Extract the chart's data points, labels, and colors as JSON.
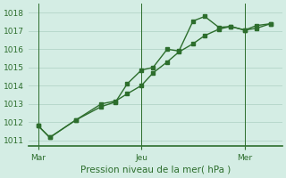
{
  "xlabel": "Pression niveau de la mer( hPa )",
  "background_color": "#d4ede4",
  "grid_color": "#b8d8cc",
  "line_color": "#2d6e2d",
  "spine_color": "#2d6e2d",
  "ylim": [
    1010.7,
    1018.5
  ],
  "yticks": [
    1011,
    1012,
    1013,
    1014,
    1015,
    1016,
    1017,
    1018
  ],
  "xtick_labels": [
    "Mar",
    "Jeu",
    "Mer"
  ],
  "xtick_positions": [
    0.0,
    0.44,
    0.88
  ],
  "vline_positions": [
    0.0,
    0.44,
    0.88
  ],
  "series1_x": [
    0.0,
    0.05,
    0.16,
    0.27,
    0.33,
    0.38,
    0.44,
    0.49,
    0.55,
    0.6,
    0.66,
    0.71,
    0.77,
    0.82,
    0.88,
    0.93,
    0.99
  ],
  "series1_y": [
    1011.8,
    1011.15,
    1012.1,
    1012.85,
    1013.1,
    1014.1,
    1014.85,
    1015.0,
    1016.0,
    1015.9,
    1017.55,
    1017.8,
    1017.2,
    1017.25,
    1017.05,
    1017.3,
    1017.4
  ],
  "series2_x": [
    0.0,
    0.05,
    0.16,
    0.27,
    0.33,
    0.38,
    0.44,
    0.49,
    0.55,
    0.6,
    0.66,
    0.71,
    0.77,
    0.82,
    0.88,
    0.93,
    0.99
  ],
  "series2_y": [
    1011.8,
    1011.15,
    1012.1,
    1013.0,
    1013.15,
    1013.55,
    1014.0,
    1014.7,
    1015.3,
    1015.85,
    1016.3,
    1016.75,
    1017.1,
    1017.25,
    1017.05,
    1017.15,
    1017.4
  ],
  "xlabel_fontsize": 7.5,
  "tick_fontsize": 6.5,
  "marker_size": 2.5,
  "linewidth": 1.0
}
